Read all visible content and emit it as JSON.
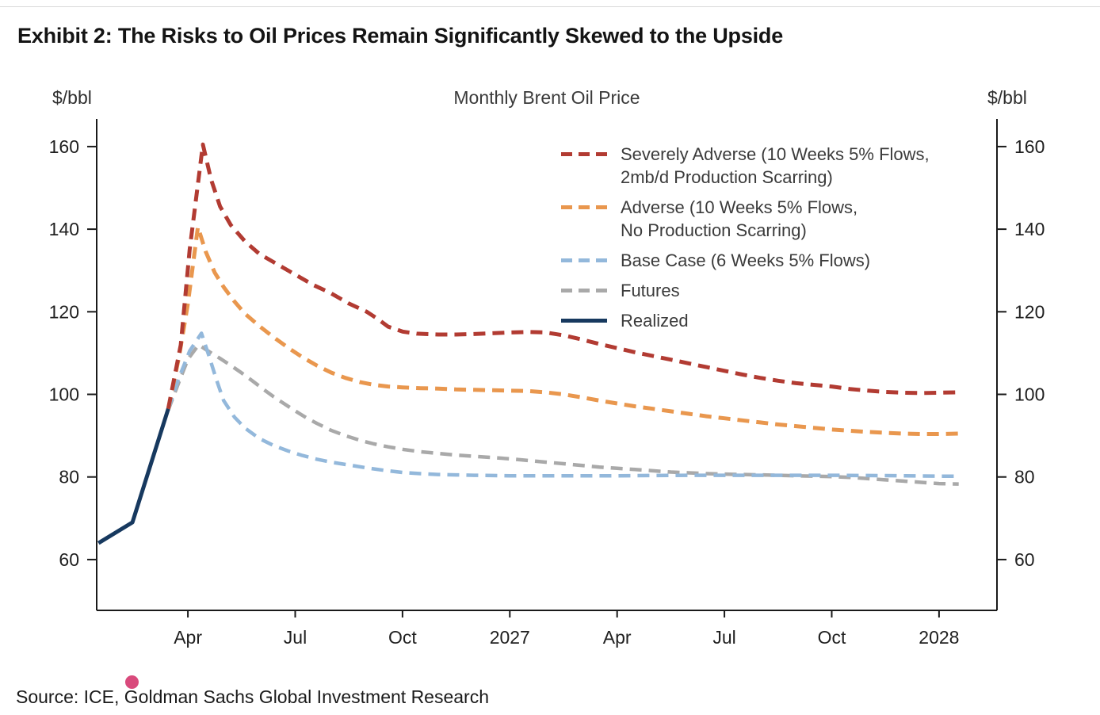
{
  "page": {
    "exhibit_title": "Exhibit 2: The Risks to Oil Prices Remain Significantly Skewed to the Upside",
    "source_text": "Source: ICE, Goldman Sachs Global Investment Research"
  },
  "colors": {
    "axis": "#1a1a1a",
    "tick_label": "#1f1f1f",
    "cursor_dot": "#d94a7c"
  },
  "chart_data": {
    "type": "line",
    "title": "Monthly Brent Oil Price",
    "ylabel_left": "$/bbl",
    "ylabel_right": "$/bbl",
    "ylim": [
      47.7,
      166.7
    ],
    "xlim": [
      0.45,
      25.62
    ],
    "yticks": [
      60,
      80,
      100,
      120,
      140,
      160
    ],
    "xticks": [
      {
        "m": 3,
        "label": "Apr"
      },
      {
        "m": 6,
        "label": "Jul"
      },
      {
        "m": 9,
        "label": "Oct"
      },
      {
        "m": 12,
        "label": "2027"
      },
      {
        "m": 15,
        "label": "Apr"
      },
      {
        "m": 18,
        "label": "Jul"
      },
      {
        "m": 21,
        "label": "Oct"
      },
      {
        "m": 24,
        "label": "2028"
      }
    ],
    "x_unit": "months_since_jan_2026",
    "grid": false,
    "legend_position": "upper-right",
    "series": [
      {
        "name": "Severely Adverse",
        "legend": [
          "Severely Adverse (10 Weeks 5% Flows,",
          "2mb/d Production Scarring)"
        ],
        "color": "#b23b32",
        "style": "dashed",
        "width": 5,
        "z": 3,
        "points": [
          [
            2.45,
            96.5
          ],
          [
            2.8,
            112
          ],
          [
            3.05,
            135
          ],
          [
            3.42,
            160.5
          ],
          [
            3.65,
            152
          ],
          [
            3.9,
            145.5
          ],
          [
            4.2,
            141
          ],
          [
            4.6,
            137
          ],
          [
            5,
            134
          ],
          [
            5.5,
            131.5
          ],
          [
            6,
            129
          ],
          [
            6.5,
            126.5
          ],
          [
            7,
            124.5
          ],
          [
            7.5,
            122
          ],
          [
            8,
            120
          ],
          [
            8.3,
            118.3
          ],
          [
            8.6,
            116.4
          ],
          [
            9,
            115.2
          ],
          [
            9.4,
            114.7
          ],
          [
            10,
            114.5
          ],
          [
            10.5,
            114.5
          ],
          [
            11,
            114.6
          ],
          [
            11.5,
            114.8
          ],
          [
            12,
            115
          ],
          [
            12.5,
            115.1
          ],
          [
            13,
            115
          ],
          [
            13.5,
            114.3
          ],
          [
            14,
            113.3
          ],
          [
            14.5,
            112.2
          ],
          [
            15,
            111.2
          ],
          [
            15.5,
            110.2
          ],
          [
            16,
            109.3
          ],
          [
            16.5,
            108.4
          ],
          [
            17,
            107.5
          ],
          [
            17.5,
            106.6
          ],
          [
            18,
            105.7
          ],
          [
            18.5,
            104.8
          ],
          [
            19,
            104
          ],
          [
            19.5,
            103.3
          ],
          [
            20,
            102.7
          ],
          [
            20.5,
            102.3
          ],
          [
            21,
            101.9
          ],
          [
            21.5,
            101.3
          ],
          [
            22,
            100.9
          ],
          [
            22.5,
            100.6
          ],
          [
            23,
            100.4
          ],
          [
            23.5,
            100.3
          ],
          [
            24,
            100.4
          ],
          [
            24.55,
            100.5
          ]
        ]
      },
      {
        "name": "Adverse",
        "legend": [
          "Adverse (10 Weeks 5% Flows,",
          "No Production Scarring)"
        ],
        "color": "#e9974e",
        "style": "dashed",
        "width": 5,
        "z": 2,
        "points": [
          [
            2.45,
            96.5
          ],
          [
            2.75,
            109
          ],
          [
            3.0,
            122
          ],
          [
            3.28,
            140.5
          ],
          [
            3.5,
            134.5
          ],
          [
            3.75,
            129.5
          ],
          [
            4,
            126
          ],
          [
            4.3,
            122.5
          ],
          [
            4.6,
            119.5
          ],
          [
            5,
            116.5
          ],
          [
            5.4,
            113.8
          ],
          [
            5.8,
            111.3
          ],
          [
            6.2,
            109
          ],
          [
            6.6,
            107
          ],
          [
            7,
            105.3
          ],
          [
            7.4,
            104
          ],
          [
            7.8,
            103
          ],
          [
            8.2,
            102.3
          ],
          [
            8.6,
            101.9
          ],
          [
            9,
            101.7
          ],
          [
            9.5,
            101.5
          ],
          [
            10,
            101.4
          ],
          [
            10.5,
            101.2
          ],
          [
            11,
            101.1
          ],
          [
            11.5,
            101
          ],
          [
            12,
            100.9
          ],
          [
            12.5,
            100.8
          ],
          [
            13,
            100.5
          ],
          [
            13.5,
            100
          ],
          [
            14,
            99.3
          ],
          [
            14.5,
            98.5
          ],
          [
            15,
            97.8
          ],
          [
            15.5,
            97.1
          ],
          [
            16,
            96.5
          ],
          [
            16.5,
            95.9
          ],
          [
            17,
            95.3
          ],
          [
            17.5,
            94.7
          ],
          [
            18,
            94.2
          ],
          [
            18.5,
            93.7
          ],
          [
            19,
            93.2
          ],
          [
            19.5,
            92.7
          ],
          [
            20,
            92.3
          ],
          [
            20.5,
            91.9
          ],
          [
            21,
            91.5
          ],
          [
            21.5,
            91.2
          ],
          [
            22,
            90.9
          ],
          [
            22.5,
            90.7
          ],
          [
            23,
            90.5
          ],
          [
            23.5,
            90.4
          ],
          [
            24,
            90.4
          ],
          [
            24.55,
            90.5
          ]
        ]
      },
      {
        "name": "Base Case",
        "legend": [
          "Base Case (6 Weeks 5% Flows)"
        ],
        "color": "#93b8db",
        "style": "dashed",
        "width": 4.5,
        "z": 1,
        "points": [
          [
            2.45,
            96.5
          ],
          [
            2.75,
            104
          ],
          [
            3.05,
            110.5
          ],
          [
            3.38,
            114.8
          ],
          [
            3.6,
            109
          ],
          [
            3.8,
            103.5
          ],
          [
            4,
            98.5
          ],
          [
            4.3,
            94.5
          ],
          [
            4.6,
            91.8
          ],
          [
            5,
            89.3
          ],
          [
            5.4,
            87.6
          ],
          [
            5.8,
            86.3
          ],
          [
            6.2,
            85.2
          ],
          [
            6.6,
            84.3
          ],
          [
            7,
            83.6
          ],
          [
            7.5,
            82.9
          ],
          [
            8,
            82.2
          ],
          [
            8.5,
            81.6
          ],
          [
            9,
            81.1
          ],
          [
            9.5,
            80.8
          ],
          [
            10,
            80.6
          ],
          [
            10.5,
            80.5
          ],
          [
            11,
            80.4
          ],
          [
            11.5,
            80.35
          ],
          [
            12,
            80.3
          ],
          [
            13,
            80.3
          ],
          [
            14,
            80.3
          ],
          [
            15,
            80.3
          ],
          [
            16,
            80.35
          ],
          [
            17,
            80.4
          ],
          [
            18,
            80.4
          ],
          [
            19,
            80.4
          ],
          [
            20,
            80.4
          ],
          [
            21,
            80.4
          ],
          [
            22,
            80.35
          ],
          [
            23,
            80.3
          ],
          [
            24,
            80.2
          ],
          [
            24.55,
            80.2
          ]
        ]
      },
      {
        "name": "Futures",
        "legend": [
          "Futures"
        ],
        "color": "#a9a9a9",
        "style": "dashed",
        "width": 4.5,
        "z": 0,
        "points": [
          [
            2.45,
            96.2
          ],
          [
            2.75,
            103
          ],
          [
            3.0,
            108.5
          ],
          [
            3.3,
            112
          ],
          [
            3.6,
            110.3
          ],
          [
            3.9,
            108.7
          ],
          [
            4.2,
            107
          ],
          [
            4.5,
            105.2
          ],
          [
            4.8,
            103.3
          ],
          [
            5.1,
            101.3
          ],
          [
            5.4,
            99.4
          ],
          [
            5.7,
            97.7
          ],
          [
            6,
            96
          ],
          [
            6.3,
            94.4
          ],
          [
            6.6,
            93
          ],
          [
            7,
            91.3
          ],
          [
            7.4,
            90
          ],
          [
            7.8,
            88.9
          ],
          [
            8.2,
            88
          ],
          [
            8.6,
            87.3
          ],
          [
            9,
            86.7
          ],
          [
            9.5,
            86.1
          ],
          [
            10,
            85.7
          ],
          [
            10.5,
            85.3
          ],
          [
            11,
            85
          ],
          [
            11.5,
            84.7
          ],
          [
            12,
            84.4
          ],
          [
            12.5,
            84
          ],
          [
            13,
            83.6
          ],
          [
            13.5,
            83.2
          ],
          [
            14,
            82.8
          ],
          [
            14.5,
            82.4
          ],
          [
            15,
            82.1
          ],
          [
            15.5,
            81.8
          ],
          [
            16,
            81.5
          ],
          [
            16.5,
            81.2
          ],
          [
            17,
            81
          ],
          [
            17.5,
            80.8
          ],
          [
            18,
            80.7
          ],
          [
            18.5,
            80.6
          ],
          [
            19,
            80.5
          ],
          [
            19.5,
            80.4
          ],
          [
            20,
            80.3
          ],
          [
            20.5,
            80.2
          ],
          [
            21,
            80.1
          ],
          [
            21.5,
            79.9
          ],
          [
            22,
            79.6
          ],
          [
            22.5,
            79.3
          ],
          [
            23,
            79
          ],
          [
            23.5,
            78.7
          ],
          [
            24,
            78.4
          ],
          [
            24.55,
            78.3
          ]
        ]
      },
      {
        "name": "Realized",
        "legend": [
          "Realized"
        ],
        "color": "#17395f",
        "style": "solid",
        "width": 5,
        "z": 4,
        "points": [
          [
            0.5,
            64
          ],
          [
            1.45,
            69
          ],
          [
            2.45,
            96.5
          ]
        ]
      }
    ]
  }
}
